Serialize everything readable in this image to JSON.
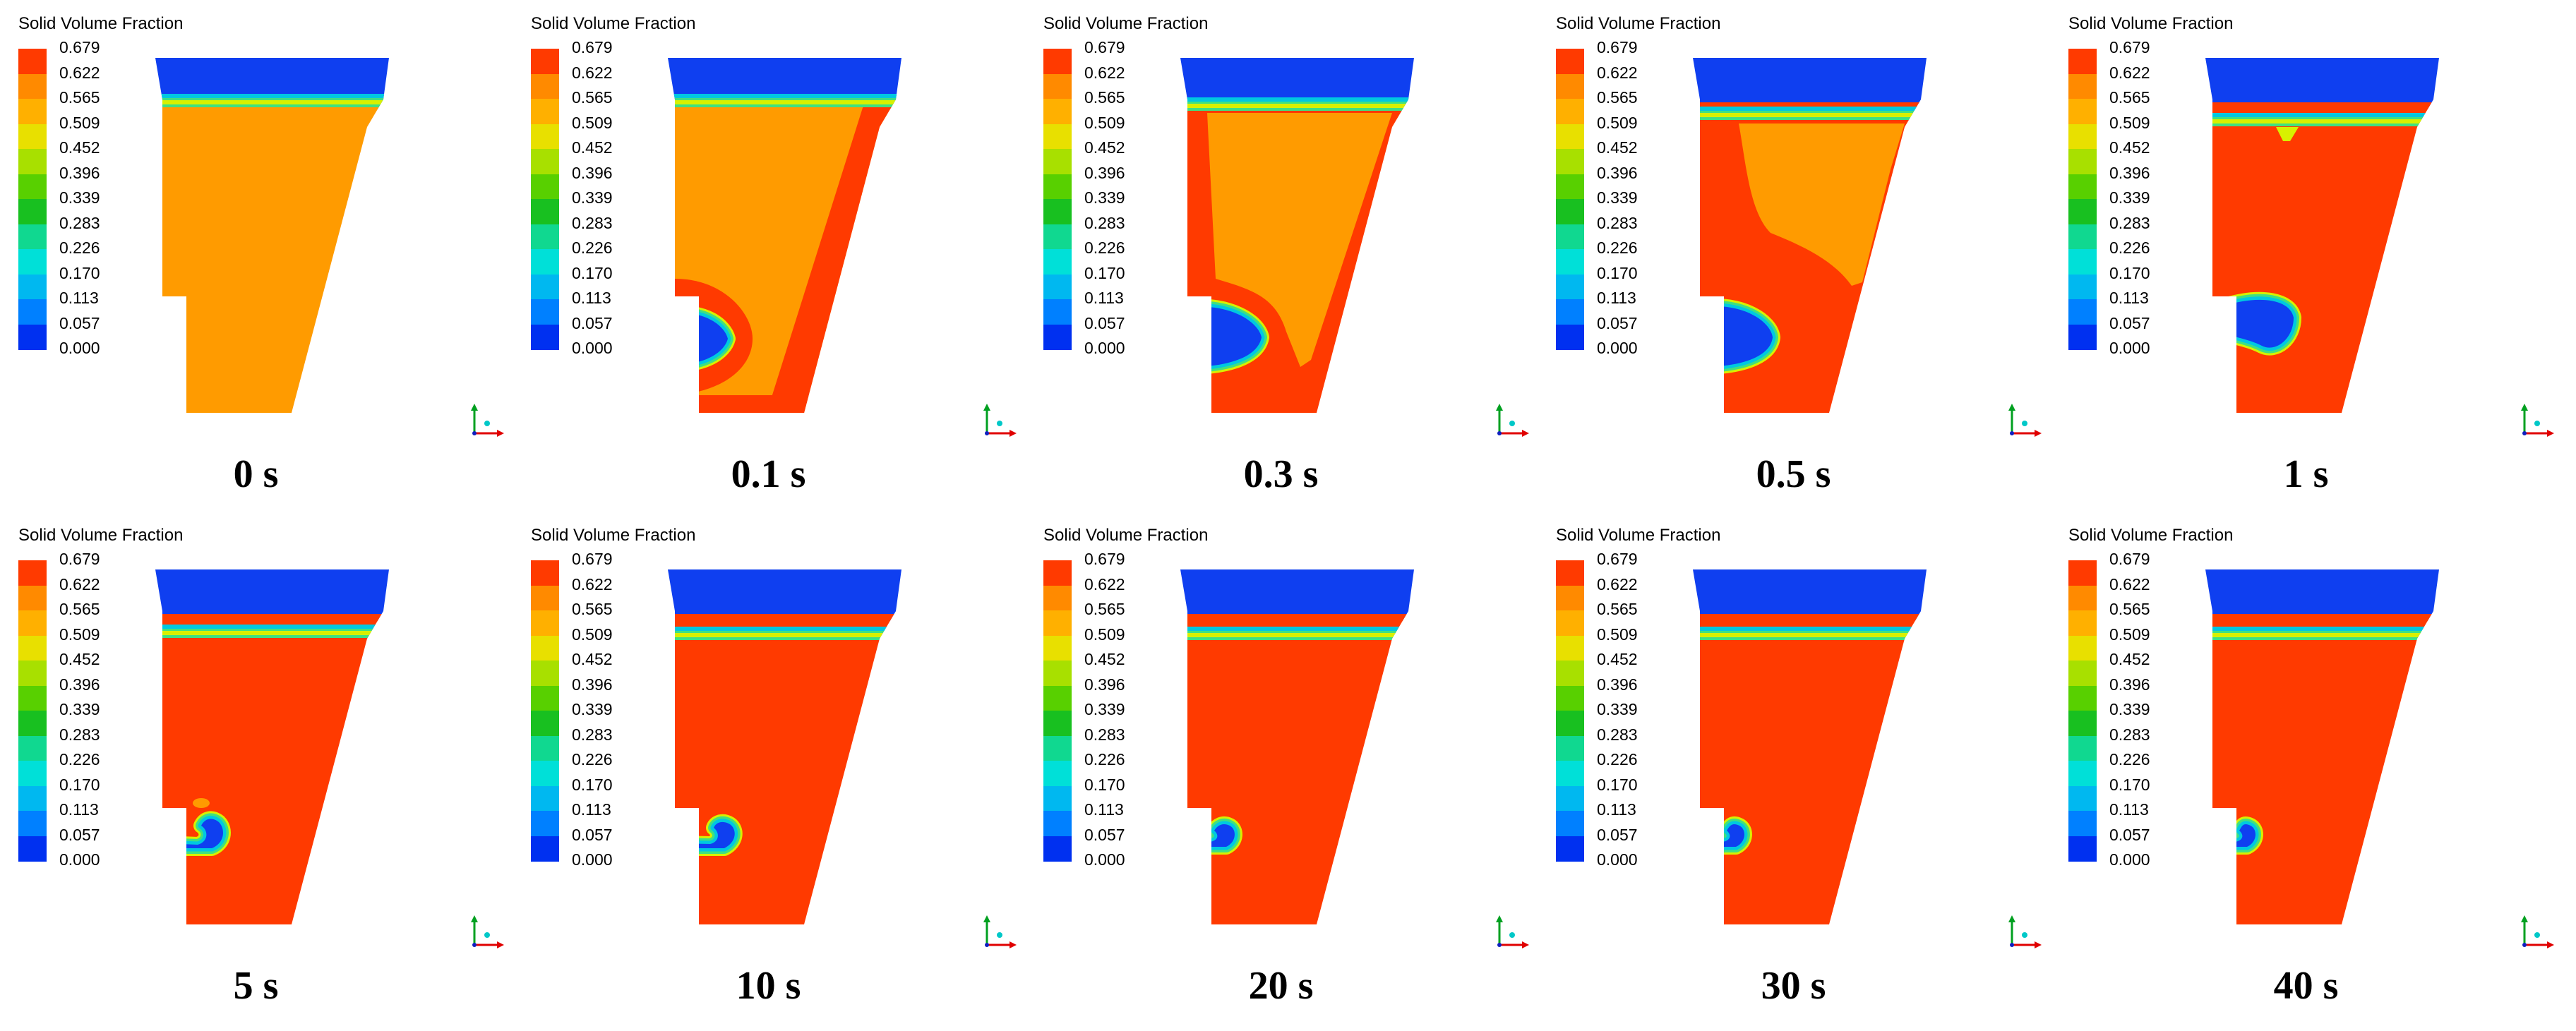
{
  "figure": {
    "panels": [
      {
        "time_label": "0 s",
        "legend_title": "Solid Volume Fraction",
        "state": "initial"
      },
      {
        "time_label": "0.1 s",
        "legend_title": "Solid Volume Fraction",
        "state": "t0_1"
      },
      {
        "time_label": "0.3 s",
        "legend_title": "Solid Volume Fraction",
        "state": "t0_3"
      },
      {
        "time_label": "0.5 s",
        "legend_title": "Solid Volume Fraction",
        "state": "t0_5"
      },
      {
        "time_label": "1 s",
        "legend_title": "Solid Volume Fraction",
        "state": "t1"
      },
      {
        "time_label": "5 s",
        "legend_title": "Solid Volume Fraction",
        "state": "t5"
      },
      {
        "time_label": "10 s",
        "legend_title": "Solid Volume Fraction",
        "state": "t10"
      },
      {
        "time_label": "20 s",
        "legend_title": "Solid Volume Fraction",
        "state": "t20"
      },
      {
        "time_label": "30 s",
        "legend_title": "Solid Volume Fraction",
        "state": "t30"
      },
      {
        "time_label": "40 s",
        "legend_title": "Solid Volume Fraction",
        "state": "t40"
      }
    ],
    "legend": {
      "title": "Solid Volume Fraction",
      "ticks": [
        "0.679",
        "0.622",
        "0.565",
        "0.509",
        "0.452",
        "0.396",
        "0.339",
        "0.283",
        "0.226",
        "0.170",
        "0.113",
        "0.057",
        "0.000"
      ],
      "colors": [
        "#ff3a00",
        "#ff8a00",
        "#ffb000",
        "#e8e000",
        "#a8e000",
        "#58d000",
        "#18c020",
        "#10d890",
        "#00e0d8",
        "#00b8f0",
        "#0080ff",
        "#0030f0"
      ]
    },
    "field_colors": {
      "packed": "#ff3a00",
      "initial": "#ff9b00",
      "void": "#0f3ff0",
      "edge1": "#00c8e0",
      "edge2": "#40e080",
      "edge3": "#d8f000"
    }
  }
}
